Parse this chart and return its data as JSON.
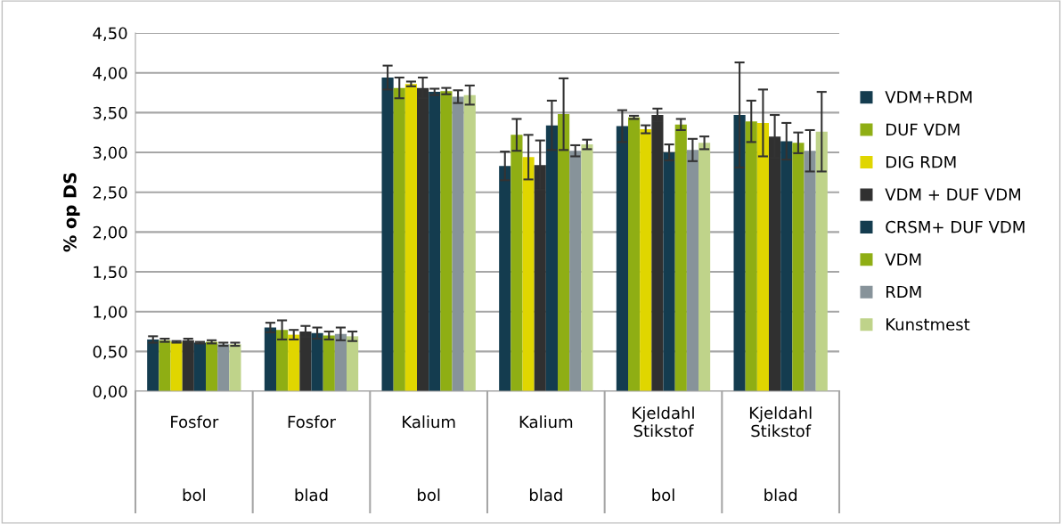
{
  "chart_data": {
    "type": "bar",
    "ylabel": "% op DS",
    "categories": [
      "Fosfor\nbol",
      "Fosfor\nblad",
      "Kalium\nbol",
      "Kalium\nblad",
      "Kjeldahl\nStikstof\nbol",
      "Kjeldahl\nStikstof\nblad"
    ],
    "series": [
      {
        "name": "VDM+RDM",
        "color": "#143c4f",
        "values": [
          0.65,
          0.8,
          3.94,
          2.83,
          3.33,
          3.47
        ],
        "errors": [
          0.04,
          0.06,
          0.15,
          0.18,
          0.2,
          0.66
        ]
      },
      {
        "name": "DUF VDM",
        "color": "#8fae14",
        "values": [
          0.64,
          0.77,
          3.81,
          3.22,
          3.44,
          3.39
        ],
        "errors": [
          0.02,
          0.12,
          0.13,
          0.2,
          0.02,
          0.26
        ]
      },
      {
        "name": "DIG RDM",
        "color": "#e0d600",
        "values": [
          0.62,
          0.71,
          3.86,
          2.94,
          3.29,
          3.37
        ],
        "errors": [
          0.01,
          0.06,
          0.03,
          0.28,
          0.05,
          0.42
        ]
      },
      {
        "name": "VDM + DUF VDM",
        "color": "#303030",
        "values": [
          0.64,
          0.75,
          3.81,
          2.84,
          3.47,
          3.2
        ],
        "errors": [
          0.02,
          0.07,
          0.13,
          0.31,
          0.08,
          0.27
        ]
      },
      {
        "name": "CRSM+ DUF VDM",
        "color": "#143c4f",
        "values": [
          0.61,
          0.73,
          3.76,
          3.34,
          3.0,
          3.14
        ],
        "errors": [
          0.01,
          0.07,
          0.04,
          0.31,
          0.1,
          0.23
        ]
      },
      {
        "name": "VDM",
        "color": "#8fae14",
        "values": [
          0.62,
          0.7,
          3.77,
          3.48,
          3.35,
          3.12
        ],
        "errors": [
          0.02,
          0.05,
          0.04,
          0.45,
          0.07,
          0.13
        ]
      },
      {
        "name": "RDM",
        "color": "#87939a",
        "values": [
          0.59,
          0.72,
          3.7,
          3.02,
          3.03,
          3.02
        ],
        "errors": [
          0.02,
          0.08,
          0.08,
          0.07,
          0.14,
          0.26
        ]
      },
      {
        "name": "Kunstmest",
        "color": "#bfd38a",
        "values": [
          0.59,
          0.69,
          3.72,
          3.1,
          3.12,
          3.26
        ],
        "errors": [
          0.02,
          0.06,
          0.12,
          0.06,
          0.08,
          0.5
        ]
      }
    ],
    "ylim": [
      0,
      4.5
    ],
    "yticks": [
      {
        "value": 0,
        "label": "0,00"
      },
      {
        "value": 0.5,
        "label": "0,50"
      },
      {
        "value": 1,
        "label": "1,00"
      },
      {
        "value": 1.5,
        "label": "1,50"
      },
      {
        "value": 2,
        "label": "2,00"
      },
      {
        "value": 2.5,
        "label": "2,50"
      },
      {
        "value": 3,
        "label": "3,00"
      },
      {
        "value": 3.5,
        "label": "3,50"
      },
      {
        "value": 4,
        "label": "4,00"
      },
      {
        "value": 4.5,
        "label": "4,50"
      }
    ],
    "grid": "y",
    "legend": "right"
  }
}
